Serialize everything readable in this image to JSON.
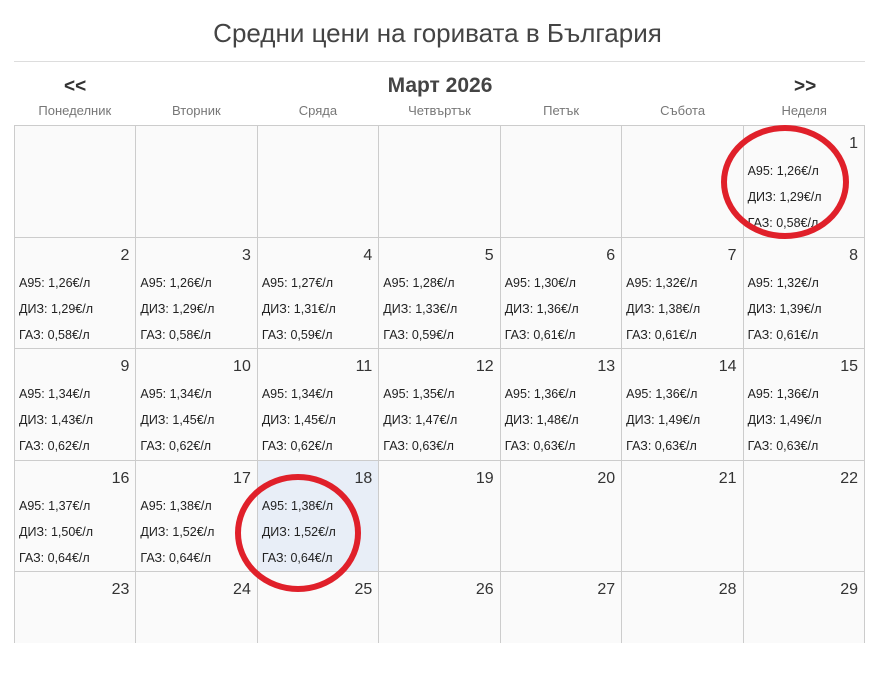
{
  "title": "Средни цени на горивата в България",
  "nav": {
    "prev": "<<",
    "next": ">>",
    "month": "Март 2026"
  },
  "weekdays": [
    "Понеделник",
    "Вторник",
    "Сряда",
    "Четвъртък",
    "Петък",
    "Събота",
    "Неделя"
  ],
  "today": 18,
  "highlighted_days": [
    1,
    18
  ],
  "annotation_color": "#e0202a",
  "days": [
    null,
    null,
    null,
    null,
    null,
    null,
    {
      "n": "1",
      "a": "А95: 1,26€/л",
      "d": "ДИЗ: 1,29€/л",
      "g": "ГАЗ: 0,58€/л"
    },
    {
      "n": "2",
      "a": "А95: 1,26€/л",
      "d": "ДИЗ: 1,29€/л",
      "g": "ГАЗ: 0,58€/л"
    },
    {
      "n": "3",
      "a": "А95: 1,26€/л",
      "d": "ДИЗ: 1,29€/л",
      "g": "ГАЗ: 0,58€/л"
    },
    {
      "n": "4",
      "a": "А95: 1,27€/л",
      "d": "ДИЗ: 1,31€/л",
      "g": "ГАЗ: 0,59€/л"
    },
    {
      "n": "5",
      "a": "А95: 1,28€/л",
      "d": "ДИЗ: 1,33€/л",
      "g": "ГАЗ: 0,59€/л"
    },
    {
      "n": "6",
      "a": "А95: 1,30€/л",
      "d": "ДИЗ: 1,36€/л",
      "g": "ГАЗ: 0,61€/л"
    },
    {
      "n": "7",
      "a": "А95: 1,32€/л",
      "d": "ДИЗ: 1,38€/л",
      "g": "ГАЗ: 0,61€/л"
    },
    {
      "n": "8",
      "a": "А95: 1,32€/л",
      "d": "ДИЗ: 1,39€/л",
      "g": "ГАЗ: 0,61€/л"
    },
    {
      "n": "9",
      "a": "А95: 1,34€/л",
      "d": "ДИЗ: 1,43€/л",
      "g": "ГАЗ: 0,62€/л"
    },
    {
      "n": "10",
      "a": "А95: 1,34€/л",
      "d": "ДИЗ: 1,45€/л",
      "g": "ГАЗ: 0,62€/л"
    },
    {
      "n": "11",
      "a": "А95: 1,34€/л",
      "d": "ДИЗ: 1,45€/л",
      "g": "ГАЗ: 0,62€/л"
    },
    {
      "n": "12",
      "a": "А95: 1,35€/л",
      "d": "ДИЗ: 1,47€/л",
      "g": "ГАЗ: 0,63€/л"
    },
    {
      "n": "13",
      "a": "А95: 1,36€/л",
      "d": "ДИЗ: 1,48€/л",
      "g": "ГАЗ: 0,63€/л"
    },
    {
      "n": "14",
      "a": "А95: 1,36€/л",
      "d": "ДИЗ: 1,49€/л",
      "g": "ГАЗ: 0,63€/л"
    },
    {
      "n": "15",
      "a": "А95: 1,36€/л",
      "d": "ДИЗ: 1,49€/л",
      "g": "ГАЗ: 0,63€/л"
    },
    {
      "n": "16",
      "a": "А95: 1,37€/л",
      "d": "ДИЗ: 1,50€/л",
      "g": "ГАЗ: 0,64€/л"
    },
    {
      "n": "17",
      "a": "А95: 1,38€/л",
      "d": "ДИЗ: 1,52€/л",
      "g": "ГАЗ: 0,64€/л"
    },
    {
      "n": "18",
      "a": "А95: 1,38€/л",
      "d": "ДИЗ: 1,52€/л",
      "g": "ГАЗ: 0,64€/л"
    },
    {
      "n": "19"
    },
    {
      "n": "20"
    },
    {
      "n": "21"
    },
    {
      "n": "22"
    },
    {
      "n": "23"
    },
    {
      "n": "24"
    },
    {
      "n": "25"
    },
    {
      "n": "26"
    },
    {
      "n": "27"
    },
    {
      "n": "28"
    },
    {
      "n": "29"
    }
  ]
}
